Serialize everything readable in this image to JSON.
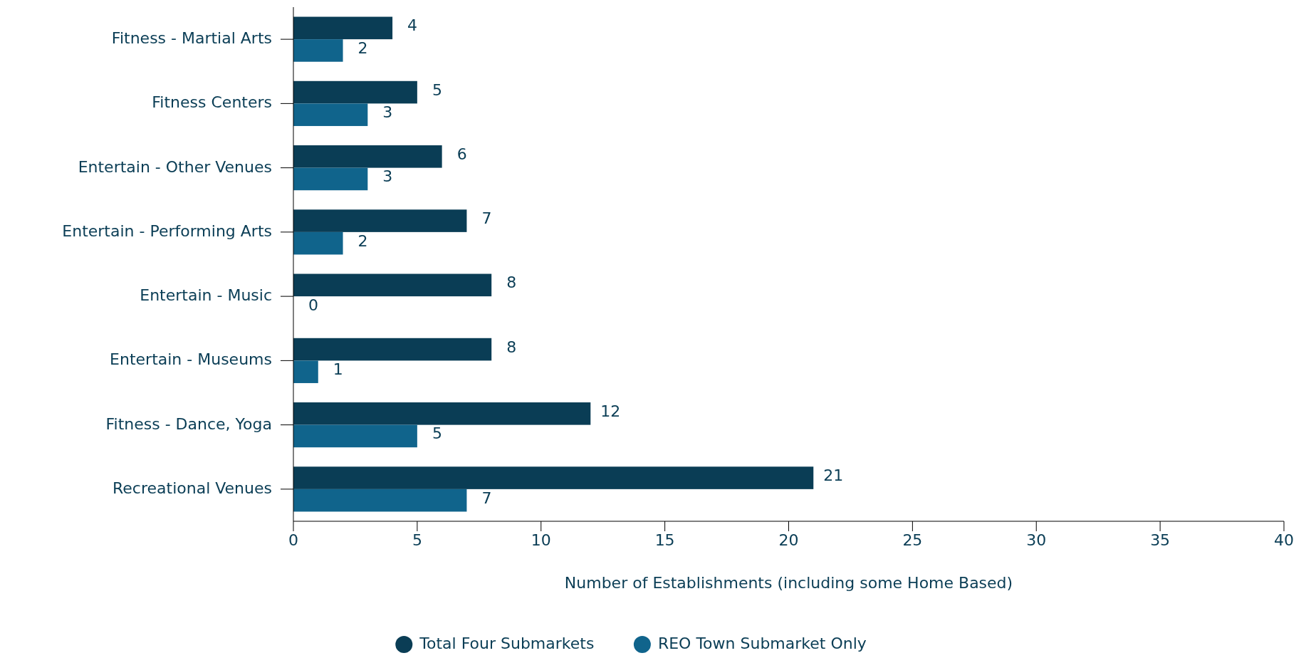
{
  "chart_data": {
    "type": "bar",
    "orientation": "horizontal",
    "xlabel": "Number of Establishments (including some Home Based)",
    "categories": [
      "Fitness - Martial Arts",
      "Fitness Centers",
      "Entertain - Other Venues",
      "Entertain - Performing Arts",
      "Entertain - Music",
      "Entertain - Museums",
      "Fitness - Dance, Yoga",
      "Recreational Venues"
    ],
    "series": [
      {
        "name": "Total Four Submarkets",
        "color": "#0a3d55",
        "values": [
          4,
          5,
          6,
          7,
          8,
          8,
          12,
          21
        ]
      },
      {
        "name": "REO Town Submarket Only",
        "color": "#10648c",
        "values": [
          2,
          3,
          3,
          2,
          0,
          1,
          5,
          7
        ]
      }
    ],
    "xlim": [
      0,
      40
    ],
    "xticks": [
      0,
      5,
      10,
      15,
      20,
      25,
      30,
      35,
      40
    ],
    "grid": false,
    "legend": "bottom",
    "data_labels": true
  }
}
